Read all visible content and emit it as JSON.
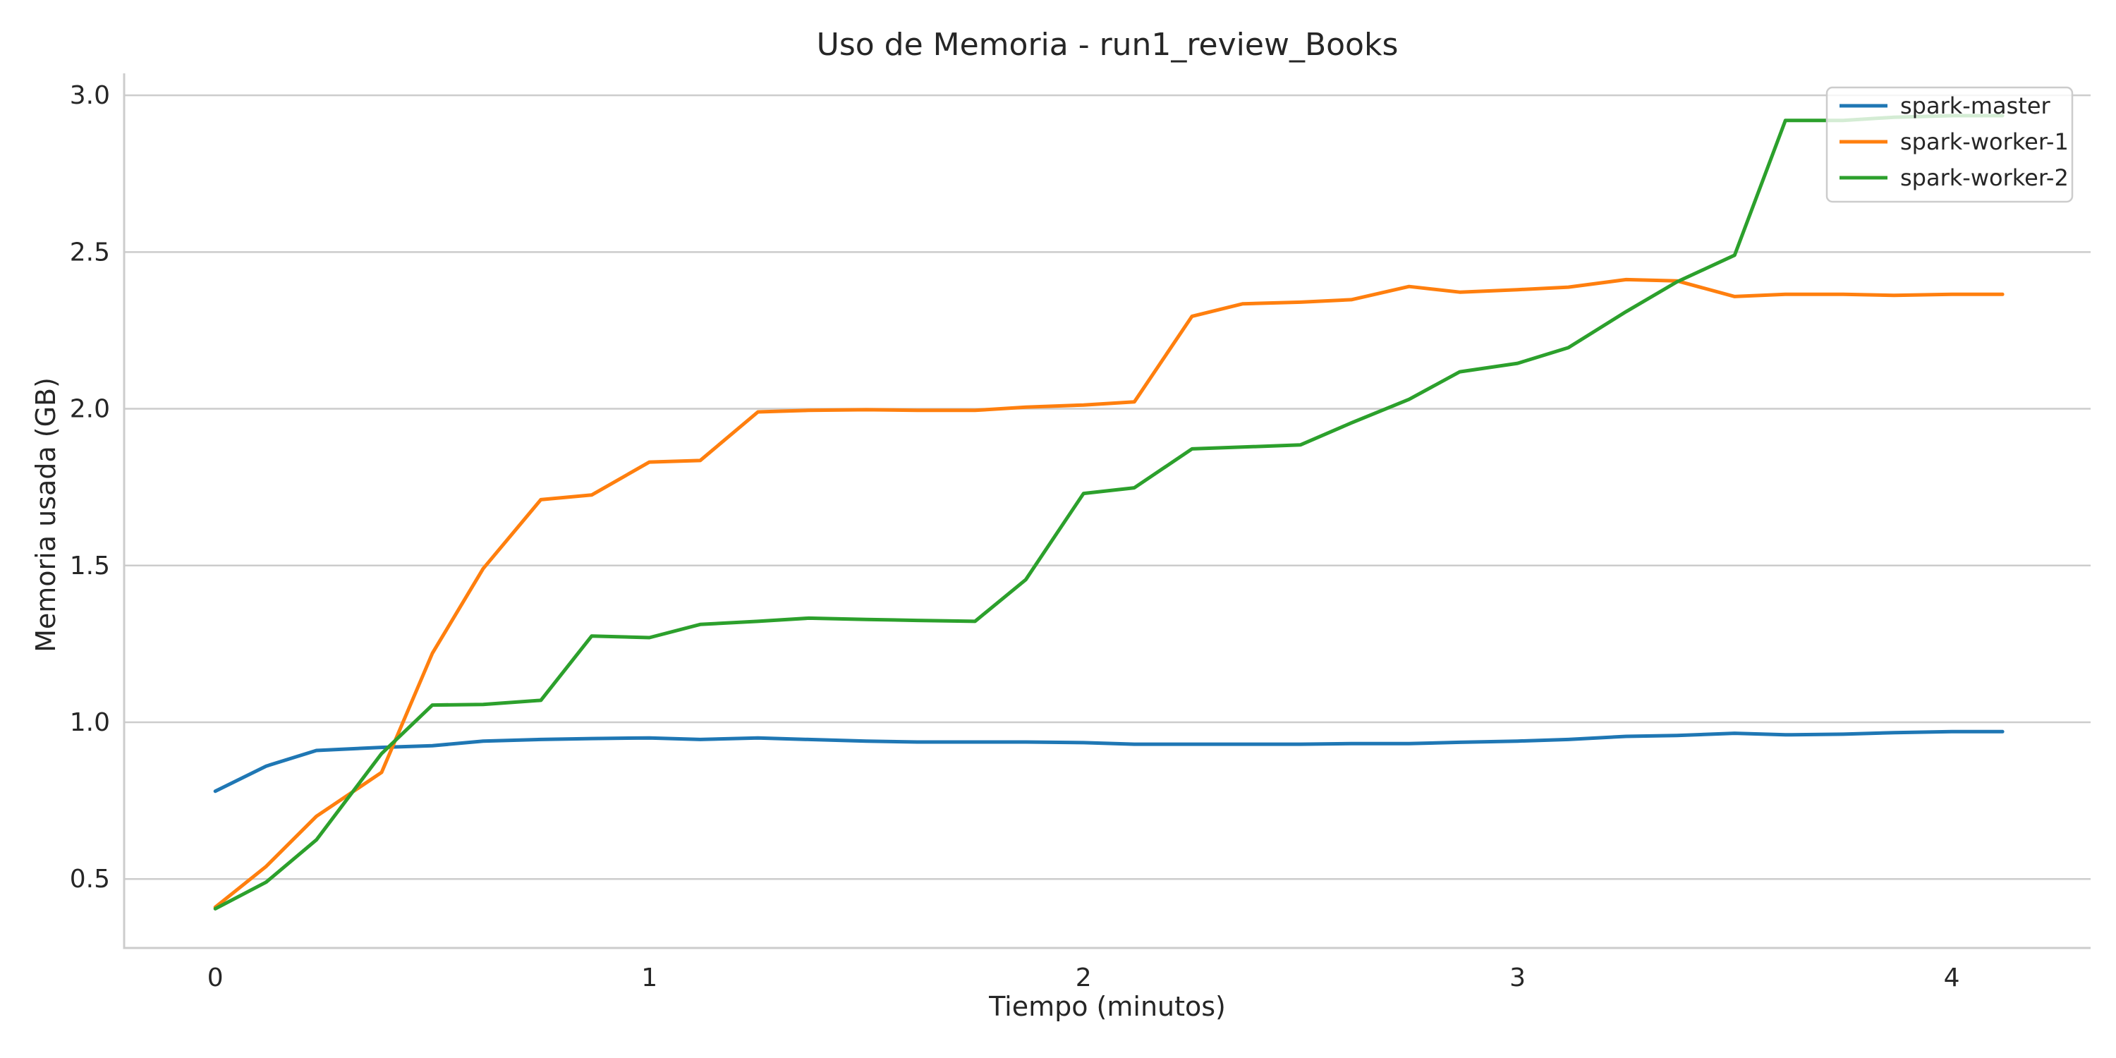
{
  "chart_data": {
    "type": "line",
    "title": "Uso de Memoria - run1_review_Books",
    "xlabel": "Tiempo (minutos)",
    "ylabel": "Memoria usada (GB)",
    "xlim": [
      -0.21,
      4.32
    ],
    "ylim": [
      0.28,
      3.07
    ],
    "xticks": [
      0,
      1,
      2,
      3,
      4
    ],
    "xtick_labels": [
      "0",
      "1",
      "2",
      "3",
      "4"
    ],
    "yticks": [
      0.5,
      1.0,
      1.5,
      2.0,
      2.5,
      3.0
    ],
    "ytick_labels": [
      "0.5",
      "1.0",
      "1.5",
      "2.0",
      "2.5",
      "3.0"
    ],
    "grid": "horizontal",
    "legend_position": "top-right",
    "x": [
      0,
      0.117,
      0.233,
      0.383,
      0.5,
      0.617,
      0.75,
      0.867,
      1.0,
      1.117,
      1.25,
      1.367,
      1.5,
      1.617,
      1.75,
      1.867,
      2.0,
      2.117,
      2.25,
      2.367,
      2.5,
      2.617,
      2.75,
      2.867,
      3.0,
      3.117,
      3.25,
      3.367,
      3.5,
      3.617,
      3.75,
      3.867,
      4.0,
      4.117
    ],
    "series": [
      {
        "name": "spark-master",
        "color": "#1f77b4",
        "values": [
          0.78,
          0.86,
          0.91,
          0.92,
          0.925,
          0.94,
          0.945,
          0.948,
          0.95,
          0.945,
          0.95,
          0.945,
          0.94,
          0.937,
          0.937,
          0.937,
          0.935,
          0.93,
          0.93,
          0.93,
          0.93,
          0.932,
          0.932,
          0.936,
          0.94,
          0.945,
          0.955,
          0.958,
          0.965,
          0.96,
          0.962,
          0.967,
          0.97,
          0.97
        ]
      },
      {
        "name": "spark-worker-1",
        "color": "#ff7f0e",
        "values": [
          0.41,
          0.54,
          0.7,
          0.84,
          1.22,
          1.49,
          1.71,
          1.725,
          1.83,
          1.835,
          1.99,
          1.995,
          1.997,
          1.995,
          1.995,
          2.005,
          2.012,
          2.022,
          2.295,
          2.335,
          2.34,
          2.348,
          2.39,
          2.372,
          2.38,
          2.388,
          2.412,
          2.408,
          2.358,
          2.365,
          2.365,
          2.362,
          2.365,
          2.365
        ]
      },
      {
        "name": "spark-worker-2",
        "color": "#2ca02c",
        "values": [
          0.405,
          0.49,
          0.625,
          0.9,
          1.055,
          1.057,
          1.07,
          1.275,
          1.27,
          1.312,
          1.322,
          1.332,
          1.328,
          1.325,
          1.322,
          1.455,
          1.73,
          1.748,
          1.872,
          1.878,
          1.885,
          1.955,
          2.03,
          2.118,
          2.145,
          2.195,
          2.31,
          2.405,
          2.49,
          2.92,
          2.92,
          2.93,
          2.935,
          2.935
        ]
      }
    ]
  }
}
